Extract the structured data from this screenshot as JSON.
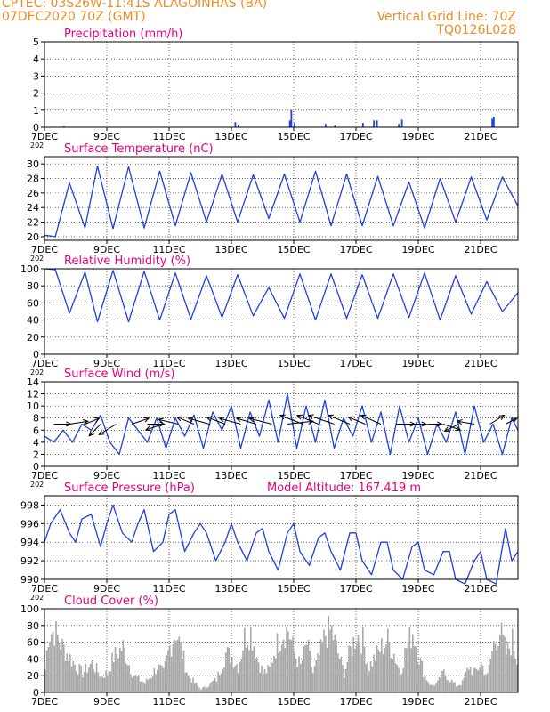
{
  "header": {
    "station_line": "CPTEC:   03S26W-11:41S   ALAGOINHAS (BA)",
    "date_line": "07DEC2020 70Z (GMT)",
    "grid_line": "Vertical Grid Line: 70Z",
    "model_code": "TQ0126L028"
  },
  "colors": {
    "header": "#f08c28",
    "title": "#e6007e",
    "series": "#1f3fe0",
    "cloud": "#a8a8a8",
    "arrow": "#000000"
  },
  "x_axis": {
    "ticks": [
      7,
      9,
      11,
      13,
      15,
      17,
      19,
      21
    ],
    "labels": [
      "7DEC",
      "9DEC",
      "11DEC",
      "13DEC",
      "15DEC",
      "17DEC",
      "19DEC",
      "21DEC"
    ],
    "range_days": [
      7,
      22.2
    ],
    "underlabel": "202"
  },
  "chart_data": [
    {
      "type": "bar",
      "title": "Precipitation (mm/h)",
      "ylim": [
        0,
        5
      ],
      "yticks": [
        0,
        1,
        2,
        3,
        4,
        5
      ],
      "x": [
        7.6,
        13.1,
        13.2,
        14.85,
        14.9,
        15.0,
        16.0,
        16.3,
        17.2,
        17.55,
        17.65,
        18.35,
        18.45,
        21.35,
        21.4
      ],
      "values": [
        0.05,
        0.3,
        0.15,
        0.4,
        1.0,
        0.25,
        0.2,
        0.1,
        0.25,
        0.4,
        0.4,
        0.2,
        0.45,
        0.5,
        0.6
      ]
    },
    {
      "type": "line",
      "title": "Surface Temperature (nC)",
      "ylim": [
        19.5,
        31
      ],
      "yticks": [
        20,
        22,
        24,
        26,
        28,
        30
      ],
      "x": [
        7.0,
        7.35,
        7.8,
        8.3,
        8.7,
        9.2,
        9.7,
        10.2,
        10.7,
        11.2,
        11.7,
        12.2,
        12.7,
        13.2,
        13.7,
        14.2,
        14.7,
        15.2,
        15.7,
        16.2,
        16.7,
        17.2,
        17.7,
        18.2,
        18.7,
        19.2,
        19.7,
        20.2,
        20.7,
        21.2,
        21.7,
        22.2
      ],
      "values": [
        20.2,
        20.0,
        27.4,
        21.2,
        29.7,
        21.1,
        29.6,
        21.2,
        29.0,
        21.5,
        28.8,
        22.0,
        28.6,
        22.0,
        28.5,
        22.5,
        28.6,
        22.0,
        29.0,
        21.5,
        28.6,
        21.5,
        28.3,
        21.5,
        27.5,
        21.2,
        28.0,
        22.0,
        28.2,
        22.3,
        28.2,
        24.2
      ]
    },
    {
      "type": "line",
      "title": "Relative Humidity (%)",
      "ylim": [
        0,
        100
      ],
      "yticks": [
        0,
        20,
        40,
        60,
        80,
        100
      ],
      "x": [
        7.0,
        7.35,
        7.8,
        8.3,
        8.7,
        9.2,
        9.7,
        10.2,
        10.7,
        11.2,
        11.7,
        12.2,
        12.7,
        13.2,
        13.7,
        14.2,
        14.7,
        15.2,
        15.7,
        16.2,
        16.7,
        17.2,
        17.7,
        18.2,
        18.7,
        19.2,
        19.7,
        20.2,
        20.7,
        21.2,
        21.7,
        22.2
      ],
      "values": [
        100,
        99,
        48,
        96,
        38,
        98,
        38,
        97,
        40,
        95,
        41,
        92,
        43,
        93,
        45,
        78,
        42,
        94,
        40,
        94,
        42,
        93,
        42,
        94,
        43,
        95,
        40,
        92,
        47,
        85,
        50,
        72
      ]
    },
    {
      "type": "line",
      "title": "Surface Wind (m/s)",
      "ylim": [
        0,
        14
      ],
      "yticks": [
        0,
        2,
        4,
        6,
        8,
        10,
        12,
        14
      ],
      "x": [
        7.0,
        7.3,
        7.6,
        7.9,
        8.2,
        8.5,
        8.8,
        9.1,
        9.4,
        9.7,
        10.0,
        10.3,
        10.6,
        10.9,
        11.2,
        11.5,
        11.8,
        12.1,
        12.4,
        12.7,
        13.0,
        13.3,
        13.6,
        13.9,
        14.2,
        14.5,
        14.8,
        15.1,
        15.4,
        15.7,
        16.0,
        16.3,
        16.6,
        16.9,
        17.2,
        17.5,
        17.8,
        18.1,
        18.4,
        18.7,
        19.0,
        19.3,
        19.6,
        19.9,
        20.2,
        20.5,
        20.8,
        21.1,
        21.4,
        21.7,
        22.0,
        22.2
      ],
      "values": [
        5,
        4,
        6,
        4,
        7,
        6,
        8.5,
        4,
        2,
        8,
        6,
        4,
        8,
        3,
        8,
        5,
        8.5,
        3,
        9,
        6,
        10,
        3,
        9,
        5,
        11,
        4,
        12,
        3,
        10,
        4,
        11,
        3,
        8,
        5,
        10,
        4,
        9,
        2,
        10,
        4,
        8,
        2,
        7,
        4,
        9,
        2,
        10,
        4,
        7,
        2,
        8,
        6
      ],
      "arrows": {
        "x": [
          7.3,
          7.8,
          8.3,
          8.8,
          9.3,
          9.8,
          10.3,
          10.8,
          11.3,
          11.8,
          12.3,
          12.8,
          13.3,
          13.8,
          14.3,
          14.8,
          15.3,
          15.8,
          16.3,
          16.8,
          17.3,
          17.8,
          18.3,
          18.8,
          19.3,
          19.8,
          20.3,
          20.8,
          21.3,
          21.8
        ],
        "dx": [
          1.2,
          1.3,
          1.0,
          -0.8,
          -1.2,
          1.2,
          1.2,
          -1.2,
          -1.4,
          -1.2,
          -1.5,
          -1.3,
          -1.5,
          -1.4,
          -1.6,
          1.8,
          -1.6,
          -1.5,
          -1.8,
          -1.5,
          -1.2,
          -1.4,
          1.3,
          1.0,
          1.0,
          1.2,
          -1.0,
          -1.2,
          1.0,
          0.8
        ],
        "dy": [
          0.0,
          0.5,
          1.0,
          -2.0,
          -1.8,
          1.0,
          0.0,
          -1.0,
          0.8,
          1.2,
          1.0,
          1.2,
          1.0,
          1.0,
          1.0,
          0.5,
          1.5,
          1.5,
          1.5,
          1.5,
          1.2,
          1.5,
          0.0,
          0.0,
          0.0,
          -1.0,
          -1.2,
          0.5,
          1.5,
          1.0
        ]
      }
    },
    {
      "type": "line",
      "title": "Surface Pressure (hPa)",
      "annotation": "Model Altitude: 167.419 m",
      "ylim": [
        990,
        999
      ],
      "yticks": [
        990,
        992,
        994,
        996,
        998
      ],
      "x": [
        7.0,
        7.2,
        7.5,
        7.8,
        8.0,
        8.2,
        8.5,
        8.8,
        9.0,
        9.2,
        9.5,
        9.8,
        10.0,
        10.2,
        10.5,
        10.8,
        11.0,
        11.2,
        11.5,
        11.8,
        12.0,
        12.2,
        12.5,
        12.8,
        13.0,
        13.2,
        13.5,
        13.8,
        14.0,
        14.2,
        14.5,
        14.8,
        15.0,
        15.2,
        15.5,
        15.8,
        16.0,
        16.2,
        16.5,
        16.8,
        17.0,
        17.2,
        17.5,
        17.8,
        18.0,
        18.2,
        18.5,
        18.8,
        19.0,
        19.2,
        19.5,
        19.8,
        20.0,
        20.2,
        20.5,
        20.8,
        21.0,
        21.2,
        21.5,
        21.8,
        22.0,
        22.2
      ],
      "values": [
        994,
        996,
        997.5,
        995,
        994,
        996.5,
        997,
        993.5,
        996,
        998,
        995,
        994,
        996,
        997.5,
        993,
        994,
        997,
        997.5,
        993,
        995,
        996,
        995,
        992,
        994,
        996,
        994,
        992,
        995,
        995.5,
        993,
        991,
        995,
        996,
        993,
        991.5,
        994.5,
        995,
        993,
        991,
        995,
        995,
        992,
        990.5,
        994,
        994,
        991,
        990,
        993.5,
        994,
        991,
        990.5,
        993,
        993,
        990,
        989.5,
        992,
        993,
        990,
        989.5,
        995.5,
        992,
        993
      ]
    },
    {
      "type": "bar",
      "title": "Cloud Cover (%)",
      "ylim": [
        0,
        100
      ],
      "yticks": [
        0,
        20,
        40,
        60,
        80,
        100
      ],
      "bar_step": 0.05,
      "envelope_x": [
        7.0,
        7.1,
        7.3,
        7.5,
        7.7,
        8.0,
        8.2,
        8.5,
        8.8,
        9.0,
        9.2,
        9.5,
        9.8,
        10.0,
        10.2,
        10.4,
        10.6,
        10.8,
        11.0,
        11.2,
        11.4,
        11.6,
        11.8,
        12.0,
        12.2,
        12.5,
        12.8,
        13.0,
        13.2,
        13.4,
        13.6,
        13.8,
        14.0,
        14.2,
        14.4,
        14.6,
        14.8,
        15.0,
        15.2,
        15.4,
        15.6,
        15.8,
        16.0,
        16.2,
        16.4,
        16.6,
        16.8,
        17.0,
        17.2,
        17.4,
        17.6,
        17.8,
        18.0,
        18.2,
        18.4,
        18.6,
        18.8,
        19.0,
        19.2,
        19.4,
        19.6,
        19.8,
        20.0,
        20.2,
        20.4,
        20.6,
        20.8,
        21.0,
        21.2,
        21.4,
        21.6,
        21.8,
        22.0,
        22.2
      ],
      "values": [
        35,
        90,
        95,
        75,
        60,
        40,
        30,
        45,
        25,
        30,
        55,
        70,
        30,
        20,
        15,
        25,
        40,
        30,
        70,
        95,
        60,
        25,
        15,
        5,
        10,
        20,
        60,
        55,
        40,
        85,
        95,
        55,
        30,
        35,
        70,
        90,
        98,
        60,
        40,
        75,
        30,
        55,
        90,
        95,
        60,
        30,
        65,
        90,
        80,
        40,
        55,
        70,
        80,
        60,
        30,
        70,
        95,
        55,
        25,
        10,
        15,
        30,
        20,
        10,
        15,
        40,
        30,
        45,
        25,
        75,
        95,
        60,
        80,
        40
      ]
    }
  ]
}
